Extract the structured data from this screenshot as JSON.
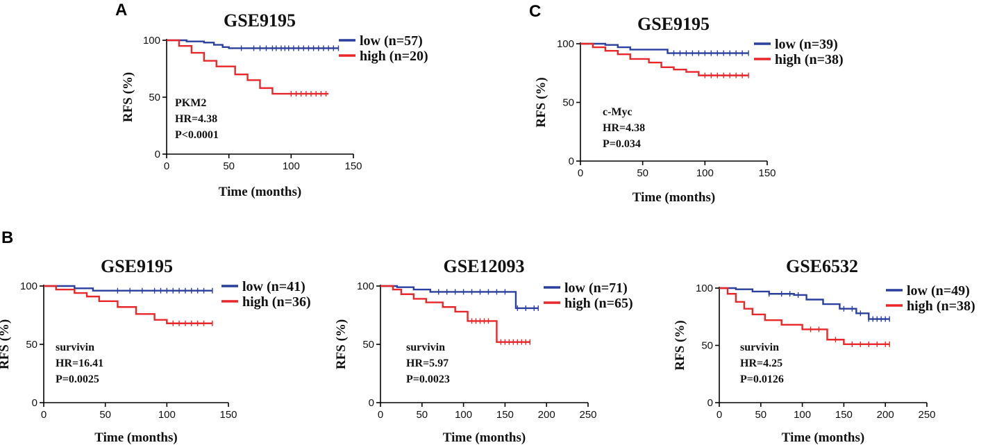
{
  "panel_labels": {
    "A": "A",
    "B": "B",
    "C": "C"
  },
  "colors": {
    "low": "#2b3f9e",
    "high": "#e8272a",
    "axis": "#000000"
  },
  "chart_data": [
    {
      "id": "A",
      "type": "line",
      "title": "GSE9195",
      "xlabel": "Time (months)",
      "ylabel": "RFS (%)",
      "xlim": [
        0,
        150
      ],
      "ylim": [
        0,
        100
      ],
      "xticks": [
        0,
        50,
        100,
        150
      ],
      "yticks": [
        0,
        50,
        100
      ],
      "legend_position": "right",
      "annotation": [
        "PKM2",
        "HR=4.38",
        "P<0.0001"
      ],
      "series": [
        {
          "name": "low (n=57)",
          "group": "low",
          "x": [
            0,
            16,
            30,
            38,
            45,
            50,
            138
          ],
          "y": [
            100,
            99,
            98,
            96,
            94,
            93,
            93
          ],
          "censor_x": [
            60,
            70,
            75,
            80,
            85,
            88,
            92,
            95,
            98,
            102,
            106,
            110,
            114,
            118,
            122,
            126,
            130,
            134,
            138
          ]
        },
        {
          "name": "high (n=20)",
          "group": "high",
          "x": [
            0,
            10,
            20,
            30,
            40,
            55,
            65,
            75,
            85,
            95,
            130
          ],
          "y": [
            100,
            95,
            89,
            82,
            77,
            70,
            65,
            58,
            53,
            53,
            53
          ],
          "censor_x": [
            100,
            104,
            108,
            112,
            116,
            120,
            124,
            128
          ]
        }
      ]
    },
    {
      "id": "C",
      "type": "line",
      "title": "GSE9195",
      "xlabel": "Time (months)",
      "ylabel": "RFS (%)",
      "xlim": [
        0,
        150
      ],
      "ylim": [
        0,
        100
      ],
      "xticks": [
        0,
        50,
        100,
        150
      ],
      "yticks": [
        0,
        50,
        100
      ],
      "legend_position": "right",
      "annotation": [
        "c-Myc",
        "HR=4.38",
        "P=0.034"
      ],
      "series": [
        {
          "name": "low (n=39)",
          "group": "low",
          "x": [
            0,
            20,
            30,
            40,
            70,
            135
          ],
          "y": [
            100,
            99,
            97,
            95,
            92,
            92
          ],
          "censor_x": [
            75,
            80,
            85,
            90,
            95,
            100,
            105,
            110,
            115,
            120,
            125,
            130,
            135
          ]
        },
        {
          "name": "high (n=38)",
          "group": "high",
          "x": [
            0,
            10,
            20,
            30,
            40,
            55,
            65,
            75,
            85,
            95,
            135
          ],
          "y": [
            100,
            97,
            94,
            91,
            87,
            84,
            80,
            78,
            76,
            73,
            73
          ],
          "censor_x": [
            100,
            105,
            110,
            115,
            120,
            125,
            130,
            135
          ]
        }
      ]
    },
    {
      "id": "B1",
      "type": "line",
      "title": "GSE9195",
      "xlabel": "Time (months)",
      "ylabel": "RFS (%)",
      "xlim": [
        0,
        150
      ],
      "ylim": [
        0,
        100
      ],
      "xticks": [
        0,
        50,
        100,
        150
      ],
      "yticks": [
        0,
        50,
        100
      ],
      "legend_position": "right",
      "annotation": [
        "survivin",
        "HR=16.41",
        "P=0.0025"
      ],
      "series": [
        {
          "name": "low (n=41)",
          "group": "low",
          "x": [
            0,
            25,
            40,
            137
          ],
          "y": [
            100,
            98,
            96,
            96
          ],
          "censor_x": [
            60,
            70,
            80,
            90,
            95,
            100,
            105,
            110,
            115,
            120,
            125,
            130,
            137
          ]
        },
        {
          "name": "high (n=36)",
          "group": "high",
          "x": [
            0,
            10,
            25,
            35,
            45,
            60,
            75,
            90,
            100,
            137
          ],
          "y": [
            100,
            97,
            94,
            91,
            87,
            82,
            76,
            71,
            68,
            68
          ],
          "censor_x": [
            105,
            110,
            115,
            120,
            125,
            130,
            137
          ]
        }
      ]
    },
    {
      "id": "B2",
      "type": "line",
      "title": "GSE12093",
      "xlabel": "Time (months)",
      "ylabel": "RFS (%)",
      "xlim": [
        0,
        250
      ],
      "ylim": [
        0,
        100
      ],
      "xticks": [
        0,
        50,
        100,
        150,
        200,
        250
      ],
      "yticks": [
        0,
        50,
        100
      ],
      "legend_position": "right",
      "annotation": [
        "survivin",
        "HR=5.97",
        "P=0.0023"
      ],
      "series": [
        {
          "name": "low (n=71)",
          "group": "low",
          "x": [
            0,
            20,
            40,
            60,
            163,
            190
          ],
          "y": [
            100,
            99,
            97,
            95,
            81,
            81
          ],
          "censor_x": [
            70,
            80,
            90,
            100,
            110,
            120,
            130,
            140,
            150,
            165,
            175,
            185,
            190
          ]
        },
        {
          "name": "high (n=65)",
          "group": "high",
          "x": [
            0,
            15,
            25,
            40,
            55,
            75,
            90,
            105,
            140,
            180
          ],
          "y": [
            100,
            97,
            93,
            89,
            86,
            82,
            78,
            70,
            52,
            52
          ],
          "censor_x": [
            110,
            115,
            120,
            125,
            130,
            145,
            150,
            155,
            160,
            165,
            170,
            175,
            180
          ]
        }
      ]
    },
    {
      "id": "B3",
      "type": "line",
      "title": "GSE6532",
      "xlabel": "Time (months)",
      "ylabel": "RFS (%)",
      "xlim": [
        0,
        250
      ],
      "ylim": [
        0,
        100
      ],
      "xticks": [
        0,
        50,
        100,
        150,
        200,
        250
      ],
      "yticks": [
        0,
        50,
        100
      ],
      "legend_position": "right",
      "annotation": [
        "survivin",
        "HR=4.25",
        "P=0.0126"
      ],
      "series": [
        {
          "name": "low (n=49)",
          "group": "low",
          "x": [
            0,
            20,
            40,
            60,
            90,
            105,
            125,
            145,
            165,
            180,
            205
          ],
          "y": [
            100,
            99,
            97,
            95,
            94,
            90,
            86,
            82,
            78,
            73,
            73
          ],
          "censor_x": [
            60,
            75,
            85,
            95,
            150,
            160,
            170,
            180,
            185,
            190,
            195,
            200,
            205
          ]
        },
        {
          "name": "high (n=38)",
          "group": "high",
          "x": [
            0,
            10,
            20,
            30,
            40,
            55,
            75,
            100,
            130,
            150,
            205
          ],
          "y": [
            100,
            95,
            88,
            82,
            77,
            72,
            68,
            64,
            55,
            51,
            51
          ],
          "censor_x": [
            110,
            120,
            140,
            160,
            170,
            180,
            190,
            200,
            205
          ]
        }
      ]
    }
  ]
}
